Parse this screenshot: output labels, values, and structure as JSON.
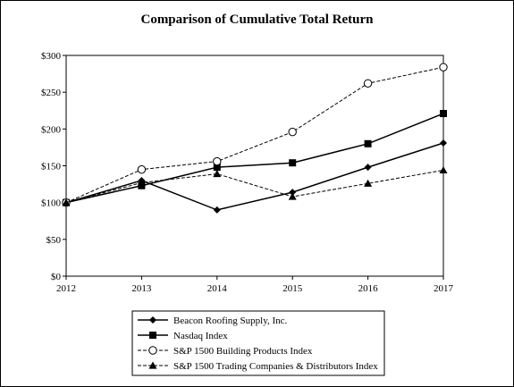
{
  "chart_data": {
    "type": "line",
    "title": "Comparison of Cumulative Total Return",
    "xlabel": "",
    "ylabel": "",
    "categories": [
      "2012",
      "2013",
      "2014",
      "2015",
      "2016",
      "2017"
    ],
    "ylim": [
      0,
      300
    ],
    "y_ticks": [
      "$0",
      "$50",
      "$100",
      "$150",
      "$200",
      "$250",
      "$300"
    ],
    "y_tick_values": [
      0,
      50,
      100,
      150,
      200,
      250,
      300
    ],
    "grid": false,
    "legend_position": "bottom",
    "series": [
      {
        "name": "Beacon Roofing Supply, Inc.",
        "values": [
          100,
          130,
          90,
          114,
          148,
          181
        ],
        "line": "solid",
        "marker": "diamond"
      },
      {
        "name": "Nasdaq Index",
        "values": [
          100,
          123,
          148,
          154,
          180,
          221
        ],
        "line": "solid",
        "marker": "square"
      },
      {
        "name": "S&P 1500 Building Products Index",
        "values": [
          100,
          145,
          156,
          196,
          262,
          284
        ],
        "line": "dashed",
        "marker": "open-circle"
      },
      {
        "name": "S&P 1500 Trading Companies & Distributors Index",
        "values": [
          100,
          127,
          139,
          108,
          126,
          144
        ],
        "line": "dashed",
        "marker": "triangle"
      }
    ]
  }
}
